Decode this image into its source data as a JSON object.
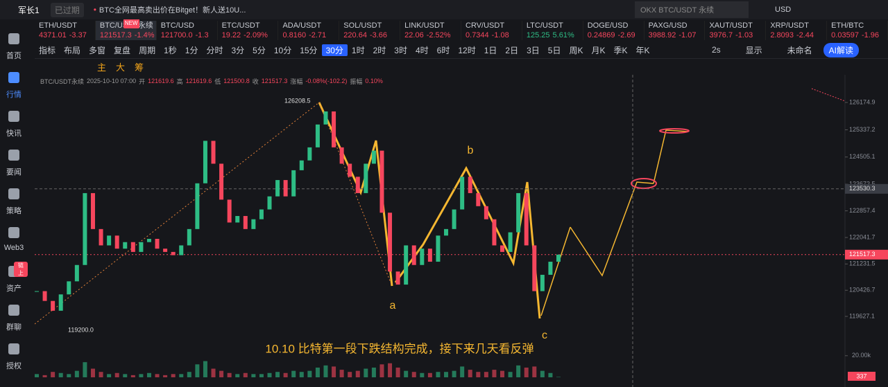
{
  "header": {
    "user": "军长1",
    "status": "已过期",
    "news": "BTC全网最高卖出价在Bitget！新人送10U...",
    "search": "OKX BTC/USDT 永续",
    "currency": "USD"
  },
  "tickers": [
    {
      "name": "ETH/USDT",
      "price": "4371.01",
      "change": "-3.37"
    },
    {
      "name": "BTC/USDT永续",
      "price": "121517.3",
      "change": "-1.4%",
      "badge": "NEW"
    },
    {
      "name": "BTC/USD",
      "price": "121700.0",
      "change": "-1.3"
    },
    {
      "name": "ETC/USDT",
      "price": "19.22",
      "change": "-2.09%"
    },
    {
      "name": "ADA/USDT",
      "price": "0.8160",
      "change": "-2.71"
    },
    {
      "name": "SOL/USDT",
      "price": "220.64",
      "change": "-3.66"
    },
    {
      "name": "LINK/USDT",
      "price": "22.06",
      "change": "-2.52%"
    },
    {
      "name": "CRV/USDT",
      "price": "0.7344",
      "change": "-1.08"
    },
    {
      "name": "LTC/USDT",
      "price": "125.25",
      "change": "5.61%"
    },
    {
      "name": "DOGE/USD",
      "price": "0.24869",
      "change": "-2.69"
    },
    {
      "name": "PAXG/USD",
      "price": "3988.92",
      "change": "-1.07"
    },
    {
      "name": "XAUT/USDT",
      "price": "3976.7",
      "change": "-1.03"
    },
    {
      "name": "XRP/USDT",
      "price": "2.8093",
      "change": "-2.44"
    },
    {
      "name": "ETH/BTC",
      "price": "0.03597",
      "change": "-1.96"
    }
  ],
  "toolbar": {
    "left": [
      "指标",
      "布局",
      "多窗",
      "复盘",
      "周期"
    ],
    "periods": [
      "1秒",
      "1分",
      "分时",
      "3分",
      "5分",
      "10分",
      "15分",
      "30分",
      "1时",
      "2时",
      "3时",
      "4时",
      "6时",
      "12时",
      "1日",
      "2日",
      "3日",
      "5日",
      "周K",
      "月K",
      "季K",
      "年K"
    ],
    "active_period": "30分",
    "right": [
      "2s",
      "显示",
      "未命名"
    ],
    "ai": "AI解读"
  },
  "tools": [
    "主",
    "大",
    "筹"
  ],
  "sidebar": [
    {
      "label": "首页"
    },
    {
      "label": "行情",
      "active": true
    },
    {
      "label": "快讯"
    },
    {
      "label": "要闻"
    },
    {
      "label": "策略"
    },
    {
      "label": "Web3"
    },
    {
      "label": "资产",
      "badge": "链上"
    },
    {
      "label": "群聊"
    },
    {
      "label": "授权"
    }
  ],
  "chart_data": {
    "type": "candlestick",
    "info": {
      "symbol": "BTC/USDT永续",
      "time": "2025-10-10 07:00",
      "open_label": "开",
      "open": "121619.6",
      "high_label": "高",
      "high": "121619.6",
      "low_label": "低",
      "low": "121500.8",
      "close_label": "收",
      "close": "121517.3",
      "change_label": "涨幅",
      "change": "-0.08%(-102.2)",
      "amp_label": "振幅",
      "amp": "0.10%"
    },
    "ylim": [
      118716,
      127022
    ],
    "yticks": [
      126174.9,
      125337.2,
      124505.1,
      123672.5,
      122857.4,
      122041.7,
      121231.5,
      120426.7,
      119627.1
    ],
    "crosshair": {
      "value": 123530.3
    },
    "last_price": 121517.3,
    "closes": [
      120400,
      120100,
      119800,
      120300,
      120700,
      121200,
      123400,
      122300,
      121800,
      122100,
      121700,
      121900,
      121600,
      121900,
      122000,
      121700,
      121600,
      121500,
      121800,
      122300,
      123700,
      125000,
      124300,
      123200,
      122500,
      122700,
      122300,
      122600,
      122900,
      123300,
      123800,
      123300,
      124100,
      124400,
      124800,
      125500,
      125900,
      124800,
      124300,
      123900,
      123400,
      124300,
      124700,
      122800,
      121000,
      120600,
      121800,
      121200,
      121700,
      121300,
      122100,
      122300,
      122900,
      123900,
      123400,
      123000,
      122600,
      121800,
      121600,
      122200,
      123400,
      121800,
      120400,
      120900,
      121300,
      121517.3
    ],
    "volumes": [
      3,
      2,
      5,
      4,
      3,
      6,
      14,
      8,
      5,
      3,
      4,
      3,
      2,
      3,
      4,
      3,
      2,
      3,
      3,
      5,
      12,
      15,
      8,
      6,
      4,
      3,
      4,
      3,
      3,
      4,
      5,
      4,
      6,
      5,
      6,
      9,
      11,
      10,
      7,
      5,
      6,
      8,
      9,
      12,
      13,
      9,
      6,
      5,
      4,
      4,
      5,
      5,
      6,
      10,
      7,
      5,
      5,
      7,
      6,
      5,
      11,
      9,
      10,
      6,
      4,
      0.337
    ],
    "vlim": [
      0,
      25
    ],
    "vticks": [
      {
        "value": 20,
        "label": "20.00k"
      }
    ],
    "current_volume": "337",
    "high_label": "126208.5",
    "low_label": "119200.0",
    "wave_labels": [
      "a",
      "b",
      "c"
    ],
    "note": "10.10 比特第一段下跌结构完成，接下来几天看反弹"
  }
}
